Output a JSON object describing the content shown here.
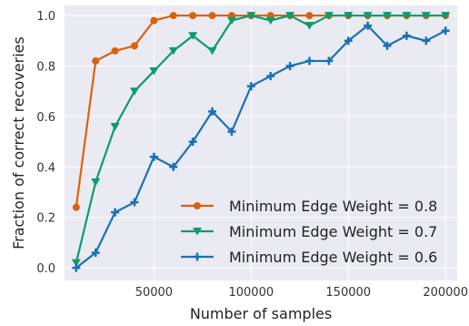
{
  "chart_data": {
    "type": "line",
    "xlabel": "Number of samples",
    "ylabel": "Fraction of correct recoveries",
    "xlim": [
      4000,
      206000
    ],
    "ylim": [
      -0.05,
      1.04
    ],
    "xticks": [
      50000,
      100000,
      150000,
      200000
    ],
    "xtick_labels": [
      "50000",
      "100000",
      "150000",
      "200000"
    ],
    "yticks": [
      0.0,
      0.2,
      0.4,
      0.6,
      0.8,
      1.0
    ],
    "ytick_labels": [
      "0.0",
      "0.2",
      "0.4",
      "0.6",
      "0.8",
      "1.0"
    ],
    "grid": true,
    "legend_position": "lower-right",
    "x": [
      10000,
      20000,
      30000,
      40000,
      50000,
      60000,
      70000,
      80000,
      90000,
      100000,
      110000,
      120000,
      130000,
      140000,
      150000,
      160000,
      170000,
      180000,
      190000,
      200000
    ],
    "series": [
      {
        "name": "Minimum Edge Weight = 0.8",
        "color": "#d9620b",
        "marker": "circle",
        "values": [
          0.24,
          0.82,
          0.86,
          0.88,
          0.98,
          1.0,
          1.0,
          1.0,
          1.0,
          1.0,
          1.0,
          1.0,
          1.0,
          1.0,
          1.0,
          1.0,
          1.0,
          1.0,
          1.0,
          1.0
        ]
      },
      {
        "name": "Minimum Edge Weight = 0.7",
        "color": "#0b9c6e",
        "marker": "triangle-down",
        "values": [
          0.02,
          0.34,
          0.56,
          0.7,
          0.78,
          0.86,
          0.92,
          0.86,
          0.98,
          1.0,
          0.98,
          1.0,
          0.96,
          1.0,
          1.0,
          1.0,
          1.0,
          1.0,
          1.0,
          1.0
        ]
      },
      {
        "name": "Minimum Edge Weight = 0.6",
        "color": "#1872b5",
        "marker": "plus",
        "values": [
          0.0,
          0.06,
          0.22,
          0.26,
          0.44,
          0.4,
          0.5,
          0.62,
          0.54,
          0.72,
          0.76,
          0.8,
          0.82,
          0.82,
          0.9,
          0.96,
          0.88,
          0.92,
          0.9,
          0.94
        ]
      }
    ]
  }
}
